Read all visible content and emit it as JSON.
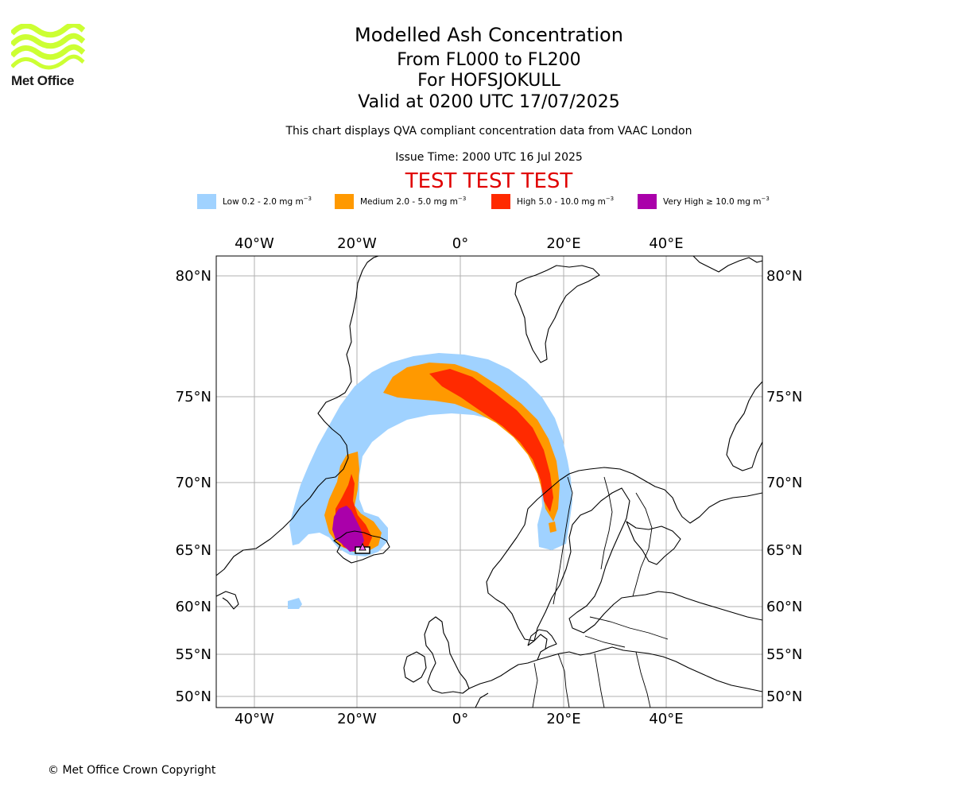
{
  "logo": {
    "text": "Met Office"
  },
  "title": {
    "line1": "Modelled Ash Concentration",
    "line2": "From FL000 to FL200",
    "line3": "For HOFSJOKULL",
    "line4": "Valid at 0200 UTC 17/07/2025"
  },
  "subtitle": "This chart displays QVA compliant concentration data from VAAC London",
  "issue_time": "Issue Time: 2000 UTC 16 Jul 2025",
  "test_banner": "TEST TEST TEST",
  "legend": [
    {
      "label": "Low 0.2 - 2.0 mg m",
      "unit_sup": "−3",
      "color": "#a0d2ff"
    },
    {
      "label": "Medium 2.0 - 5.0 mg m",
      "unit_sup": "−3",
      "color": "#ff9900"
    },
    {
      "label": "High 5.0 - 10.0 mg m",
      "unit_sup": "−3",
      "color": "#ff2a00"
    },
    {
      "label": "Very High  ≥  10.0 mg m",
      "unit_sup": "−3",
      "color": "#aa00aa"
    }
  ],
  "map": {
    "lon_labels": [
      "40°W",
      "20°W",
      "0°",
      "20°E",
      "40°E"
    ],
    "lat_labels": [
      "80°N",
      "75°N",
      "70°N",
      "65°N",
      "60°N",
      "55°N",
      "50°N"
    ]
  },
  "footer": "© Met Office Crown Copyright"
}
